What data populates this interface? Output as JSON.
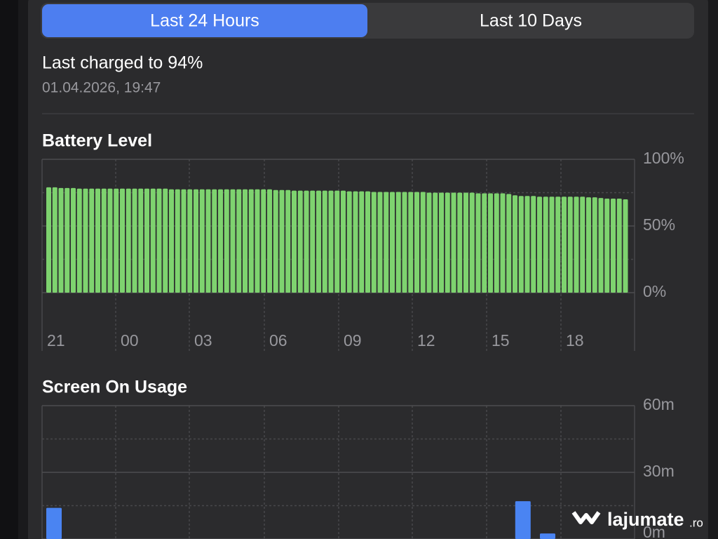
{
  "segmented": [
    "Last 24 Hours",
    "Last 10 Days"
  ],
  "header": {
    "title": "Last charged to 94%",
    "subtitle": "01.04.2026, 19:47"
  },
  "chart_data": [
    {
      "type": "bar",
      "title": "Battery Level",
      "color": "#7ed36f",
      "values": [
        79,
        79,
        78.5,
        78.5,
        78.5,
        78,
        78,
        78,
        78,
        78,
        78,
        78,
        78,
        78,
        78,
        78,
        78,
        78,
        78,
        78,
        77.5,
        77.5,
        77.5,
        77.5,
        77.5,
        77.5,
        77.5,
        77.5,
        77.5,
        77.5,
        77.5,
        77.5,
        77.5,
        77.5,
        77.5,
        77.5,
        77.5,
        77,
        77,
        77,
        76.5,
        76.5,
        76.5,
        76.5,
        76.5,
        76.5,
        76.5,
        76.5,
        76.5,
        76,
        76,
        76,
        76,
        75.5,
        75.5,
        75.5,
        75.5,
        75.5,
        75.5,
        75.5,
        75.5,
        75.5,
        75,
        75,
        75,
        75,
        75,
        75,
        75,
        75,
        74.5,
        74.5,
        74.5,
        74.5,
        74.5,
        74,
        73,
        72.5,
        72.5,
        72.5,
        72,
        72,
        72,
        72,
        72,
        72,
        72,
        72,
        71.5,
        71.5,
        71,
        70.5,
        70.5,
        70.5,
        70
      ],
      "x_labels": [
        "21",
        "00",
        "03",
        "06",
        "09",
        "12",
        "15",
        "18"
      ],
      "ylim": [
        0,
        100
      ],
      "yticks": [
        {
          "value": 0,
          "label": "0%"
        },
        {
          "value": 50,
          "label": "50%"
        },
        {
          "value": 100,
          "label": "100%"
        }
      ],
      "minor_yticks": [
        25,
        75
      ]
    },
    {
      "type": "bar",
      "title": "Screen On Usage",
      "color": "#4a84f2",
      "values": [
        14,
        0,
        0,
        0,
        0,
        0,
        0,
        0,
        0,
        0,
        0,
        0,
        0,
        0,
        0,
        0,
        0,
        0,
        0,
        17,
        2.5,
        0,
        0,
        0
      ],
      "ylim": [
        0,
        60
      ],
      "yticks": [
        {
          "value": 0,
          "label": "0m"
        },
        {
          "value": 30,
          "label": "30m"
        },
        {
          "value": 60,
          "label": "60m"
        }
      ],
      "minor_yticks": [
        15,
        45
      ]
    }
  ],
  "watermark": {
    "name": "lajumate",
    "suffix": ".ro"
  }
}
